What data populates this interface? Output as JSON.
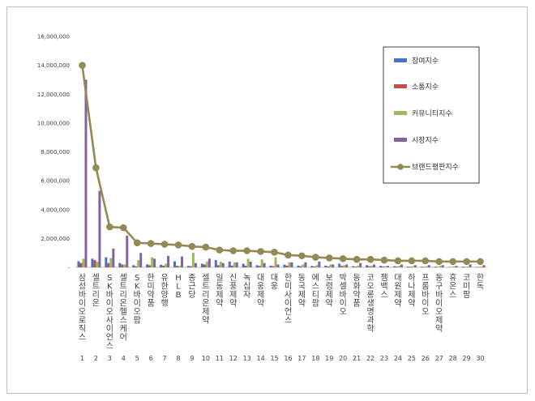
{
  "chart_data": {
    "type": "bar",
    "title": "",
    "xlabel": "",
    "ylabel": "",
    "ylim": [
      0,
      16000000
    ],
    "yticks": [
      "-",
      "2,000,000",
      "4,000,000",
      "6,000,000",
      "8,000,000",
      "10,000,000",
      "12,000,000",
      "14,000,000",
      "16,000,000"
    ],
    "grid": false,
    "legend_position": "right",
    "categories": [
      "삼성바이오로직스",
      "셀트리온",
      "SK바이오사이언스",
      "셀트리온헬스케어",
      "SK바이오팜",
      "한미약품",
      "유한양행",
      "HLB",
      "종근당",
      "셀트리온제약",
      "일동제약",
      "신풍제약",
      "녹십자",
      "대웅제약",
      "대웅",
      "한미사이언스",
      "동국제약",
      "에스티팜",
      "보령제약",
      "박셀바이오",
      "동화약품",
      "코오롱생명과학",
      "젬백스",
      "대원제약",
      "하나제약",
      "프롬바이오",
      "동구바이오제약",
      "휴온스",
      "코미팜",
      "한독"
    ],
    "ranks": [
      "1",
      "2",
      "3",
      "4",
      "5",
      "6",
      "7",
      "8",
      "9",
      "10",
      "11",
      "12",
      "13",
      "14",
      "15",
      "16",
      "17",
      "18",
      "19",
      "20",
      "21",
      "22",
      "23",
      "24",
      "25",
      "26",
      "27",
      "28",
      "29",
      "30"
    ],
    "series": [
      {
        "name": "참여지수",
        "kind": "bar",
        "color": "#4472c4",
        "values": [
          420000,
          600000,
          700000,
          300000,
          150000,
          200000,
          180000,
          420000,
          100000,
          250000,
          500000,
          400000,
          250000,
          150000,
          120000,
          180000,
          120000,
          100000,
          120000,
          250000,
          80000,
          150000,
          100000,
          80000,
          50000,
          50000,
          50000,
          30000,
          50000,
          30000
        ]
      },
      {
        "name": "소통지수",
        "kind": "bar",
        "color": "#c0504d",
        "values": [
          300000,
          500000,
          300000,
          200000,
          80000,
          150000,
          120000,
          100000,
          80000,
          200000,
          150000,
          120000,
          120000,
          100000,
          80000,
          120000,
          80000,
          60000,
          60000,
          100000,
          50000,
          80000,
          60000,
          50000,
          40000,
          30000,
          30000,
          20000,
          30000,
          20000
        ]
      },
      {
        "name": "커뮤니티지수",
        "kind": "bar",
        "color": "#9bbb59",
        "values": [
          600000,
          400000,
          650000,
          200000,
          500000,
          700000,
          250000,
          100000,
          1000000,
          400000,
          400000,
          350000,
          600000,
          550000,
          700000,
          350000,
          200000,
          150000,
          200000,
          150000,
          120000,
          120000,
          80000,
          100000,
          80000,
          80000,
          100000,
          80000,
          60000,
          60000
        ]
      },
      {
        "name": "시장지수",
        "kind": "bar",
        "color": "#8064a2",
        "values": [
          13000000,
          5300000,
          1300000,
          2200000,
          1000000,
          600000,
          800000,
          750000,
          300000,
          600000,
          300000,
          350000,
          400000,
          300000,
          200000,
          350000,
          350000,
          400000,
          200000,
          200000,
          300000,
          200000,
          100000,
          200000,
          150000,
          150000,
          150000,
          100000,
          200000,
          150000
        ]
      },
      {
        "name": "브랜드평판지수",
        "kind": "line",
        "color": "#938953",
        "values": [
          14000000,
          6900000,
          2800000,
          2750000,
          1700000,
          1650000,
          1600000,
          1550000,
          1450000,
          1400000,
          1200000,
          1150000,
          1150000,
          1100000,
          1050000,
          850000,
          800000,
          700000,
          650000,
          600000,
          550000,
          550000,
          500000,
          450000,
          450000,
          450000,
          400000,
          400000,
          400000,
          400000
        ]
      }
    ]
  }
}
